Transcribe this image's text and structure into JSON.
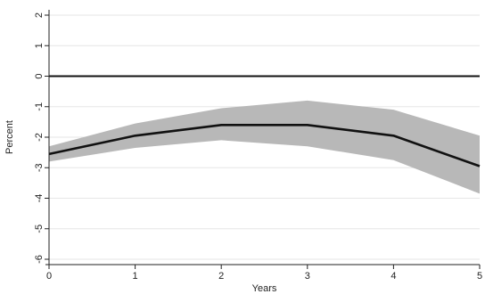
{
  "chart_data": {
    "type": "line",
    "xlabel": "Years",
    "ylabel": "Percent",
    "x": [
      0,
      1,
      2,
      3,
      4,
      5
    ],
    "xlim": [
      0,
      5
    ],
    "ylim": [
      -6,
      2
    ],
    "xticks": [
      "0",
      "1",
      "2",
      "3",
      "4",
      "5"
    ],
    "yticks": [
      "-6",
      "-5",
      "-4",
      "-3",
      "-2",
      "-1",
      "0",
      "1",
      "2"
    ],
    "grid": true,
    "legend": "none",
    "series": [
      {
        "values": [
          -2.55,
          -1.95,
          -1.6,
          -1.6,
          -1.95,
          -2.95
        ]
      }
    ],
    "confidence_band": {
      "lower": [
        -2.8,
        -2.35,
        -2.1,
        -2.3,
        -2.75,
        -3.85
      ],
      "upper": [
        -2.3,
        -1.55,
        -1.05,
        -0.8,
        -1.1,
        -1.95
      ]
    },
    "reference_line": 0,
    "colors": {
      "line": "#111111",
      "band": "#b8b8b8",
      "reference": "#111111",
      "grid": "#e6e6e6",
      "axis": "#222222"
    }
  }
}
